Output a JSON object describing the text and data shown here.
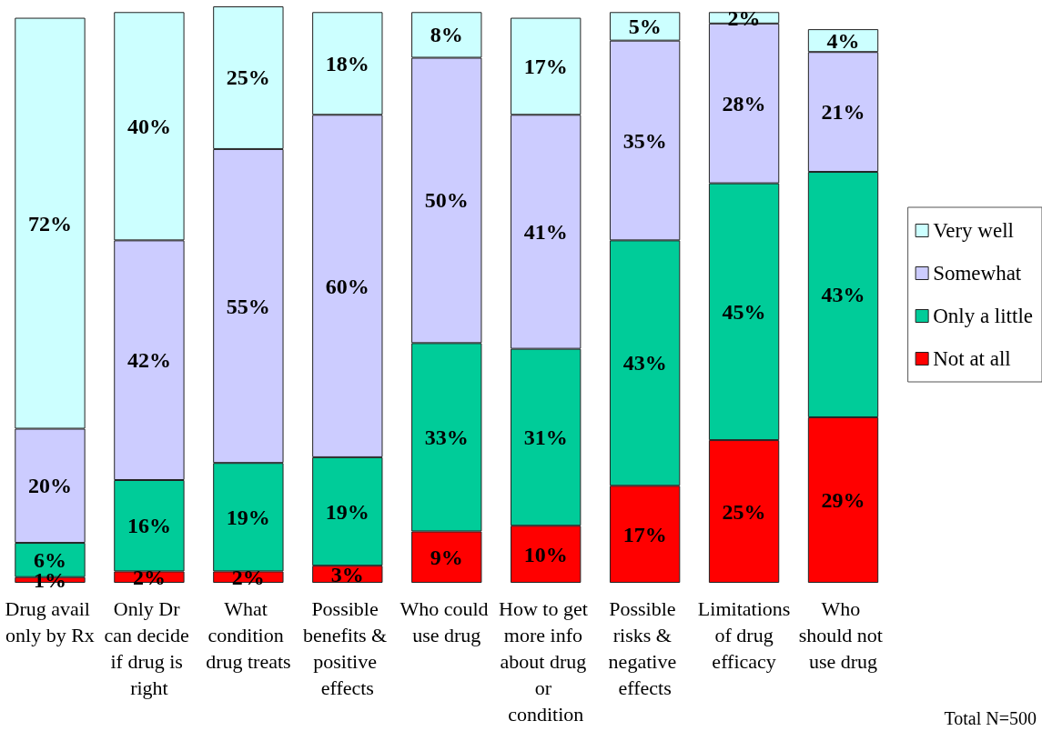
{
  "chart_data": {
    "type": "bar",
    "stacked": true,
    "categories": [
      "Drug avail only by Rx",
      "Only Dr can decide if drug is right",
      "What condition drug treats",
      "Possible benefits & positive effects",
      "Who could use drug",
      "How to get more info about drug or condition",
      "Possible risks & negative effects",
      "Limitations of drug efficacy",
      "Who should not use drug"
    ],
    "series": [
      {
        "name": "Not at all",
        "color": "#ff0000",
        "values": [
          1,
          2,
          2,
          3,
          9,
          10,
          17,
          25,
          29
        ],
        "value_labels": [
          "1%",
          "2%",
          "2%",
          "3%",
          "9%",
          "10%",
          "17%",
          "25%",
          "29%"
        ]
      },
      {
        "name": "Only a little",
        "color": "#00cc99",
        "values": [
          6,
          16,
          19,
          19,
          33,
          31,
          43,
          45,
          43
        ],
        "value_labels": [
          "6%",
          "16%",
          "19%",
          "19%",
          "33%",
          "31%",
          "43%",
          "45%",
          "43%"
        ]
      },
      {
        "name": "Somewhat",
        "color": "#ccccff",
        "values": [
          20,
          42,
          55,
          60,
          50,
          41,
          35,
          28,
          21
        ],
        "value_labels": [
          "20%",
          "42%",
          "55%",
          "60%",
          "50%",
          "41%",
          "35%",
          "28%",
          "21%"
        ]
      },
      {
        "name": "Very well",
        "color": "#ccffff",
        "values": [
          72,
          40,
          25,
          18,
          8,
          17,
          5,
          2,
          4
        ],
        "value_labels": [
          "72%",
          "40%",
          "25%",
          "18%",
          "8%",
          "17%",
          "5%",
          "2%",
          "4%"
        ]
      }
    ],
    "legend": "right",
    "tick_labels": "x",
    "annotations": [
      "Total N=500"
    ]
  }
}
